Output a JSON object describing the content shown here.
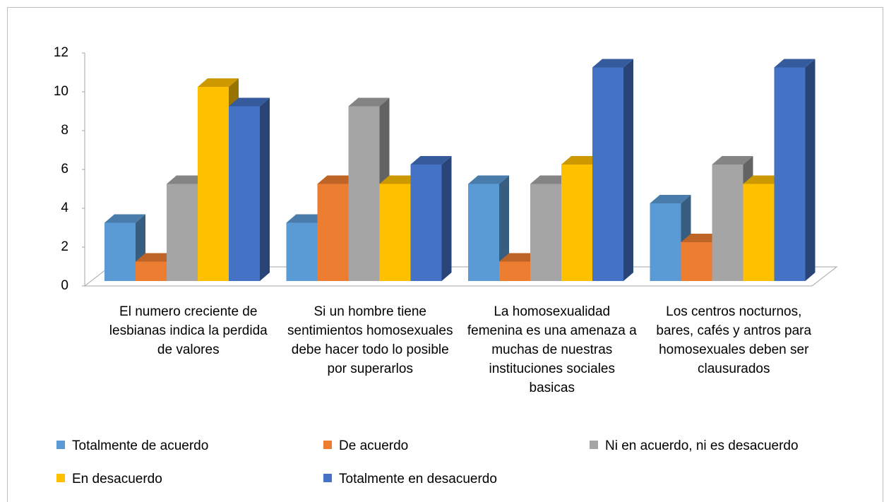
{
  "chart_data": {
    "type": "bar3d",
    "categories": [
      "El numero creciente de lesbianas indica la perdida de valores",
      "Si un hombre tiene sentimientos homosexuales debe hacer todo lo posible por superarlos",
      "La homosexualidad femenina es una amenaza a muchas de nuestras instituciones sociales basicas",
      "Los centros nocturnos, bares, cafés y antros para homosexuales deben ser clausurados"
    ],
    "series": [
      {
        "name": "Totalmente de acuerdo",
        "color": "#5b9bd5",
        "values": [
          3,
          3,
          5,
          4
        ]
      },
      {
        "name": "De acuerdo",
        "color": "#ed7d31",
        "values": [
          1,
          5,
          1,
          2
        ]
      },
      {
        "name": "Ni en acuerdo, ni es desacuerdo",
        "color": "#a5a5a5",
        "values": [
          5,
          9,
          5,
          6
        ]
      },
      {
        "name": "En desacuerdo",
        "color": "#ffc000",
        "values": [
          10,
          5,
          6,
          5
        ]
      },
      {
        "name": "Totalmente en desacuerdo",
        "color": "#4472c4",
        "values": [
          9,
          6,
          11,
          11
        ]
      }
    ],
    "ylim": [
      0,
      12
    ],
    "yticks": [
      0,
      2,
      4,
      6,
      8,
      10,
      12
    ],
    "grid": false,
    "legend": "bottom"
  }
}
